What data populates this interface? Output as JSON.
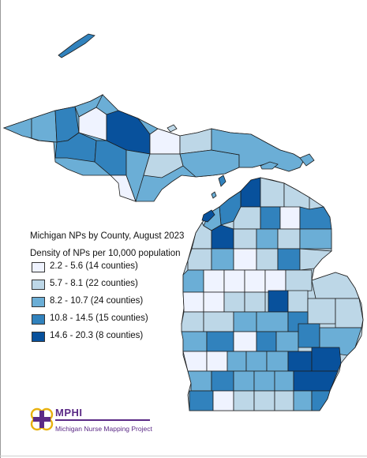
{
  "legend": {
    "title": "Michigan NPs by County, August 2023",
    "subtitle": "Density of NPs per 10,000 population",
    "classes": [
      {
        "label": "2.2 - 5.6 (14 counties)",
        "color": "#eff3ff"
      },
      {
        "label": "5.7 - 8.1 (22 counties)",
        "color": "#bdd7e7"
      },
      {
        "label": "8.2 - 10.7 (24 counties)",
        "color": "#6baed6"
      },
      {
        "label": "10.8 - 14.5 (15 counties)",
        "color": "#3182bd"
      },
      {
        "label": "14.6 - 20.3 (8 counties)",
        "color": "#08519c"
      }
    ]
  },
  "logo": {
    "name": "MPHI",
    "tagline": "Michigan Nurse Mapping Project",
    "color": "#5b2a86",
    "accent": "#e8b10f"
  }
}
